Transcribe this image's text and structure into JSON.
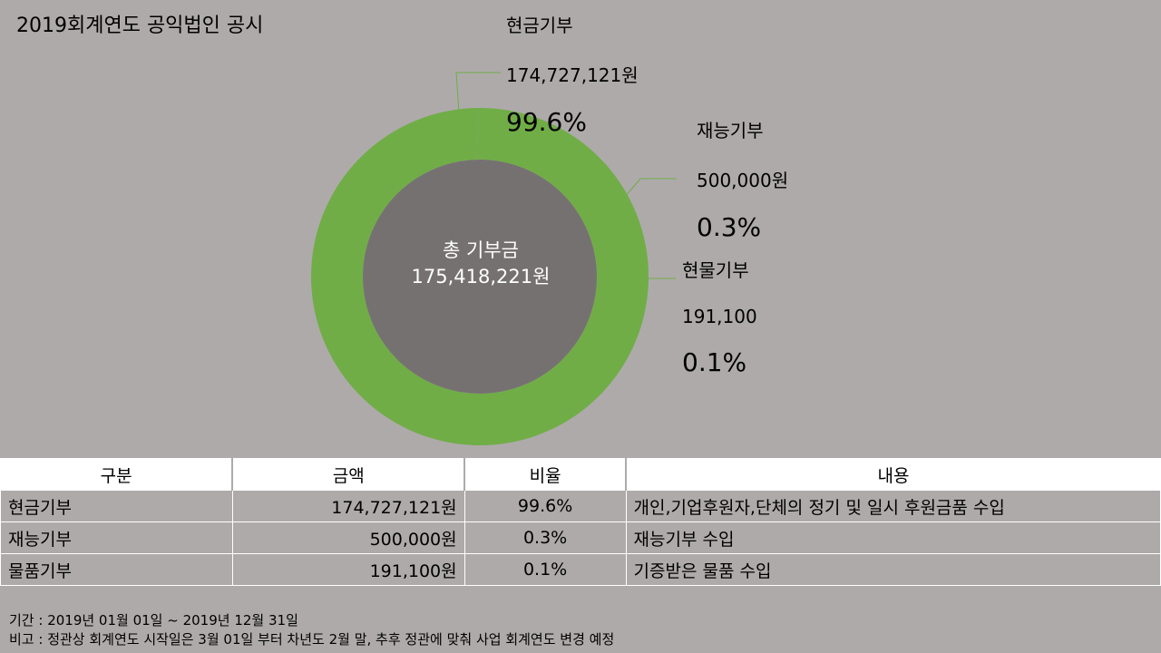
{
  "title": "2019회계연도 공익법인 공시",
  "colors": {
    "background": "#aeaaaa",
    "ring": "#70ad47",
    "center": "#767171",
    "leader": "#70ad47"
  },
  "chart_data": {
    "type": "pie",
    "variant": "donut",
    "center_label": "총 기부금",
    "center_value": "175,418,221원",
    "slices": [
      {
        "label": "현금기부",
        "amount": "174,727,121원",
        "value": 174727121,
        "percent": "99.6%"
      },
      {
        "label": "재능기부",
        "amount": "500,000원",
        "value": 500000,
        "percent": "0.3%"
      },
      {
        "label": "현물기부",
        "amount": "191,100",
        "value": 191100,
        "percent": "0.1%"
      }
    ]
  },
  "table": {
    "headers": [
      "구분",
      "금액",
      "비율",
      "내용"
    ],
    "rows": [
      {
        "category": "현금기부",
        "amount": "174,727,121원",
        "ratio": "99.6%",
        "content": "개인,기업후원자,단체의 정기 및 일시 후원금품 수입"
      },
      {
        "category": "재능기부",
        "amount": "500,000원",
        "ratio": "0.3%",
        "content": "재능기부 수입"
      },
      {
        "category": "물품기부",
        "amount": "191,100원",
        "ratio": "0.1%",
        "content": "기증받은 물품 수입"
      }
    ]
  },
  "footnotes": {
    "period": "기간 : 2019년 01월 01일 ~ 2019년 12월 31일",
    "note": "비고 : 정관상 회계연도 시작일은 3월 01일 부터 차년도 2월 말, 추후 정관에 맞춰 사업 회계연도 변경 예정"
  }
}
